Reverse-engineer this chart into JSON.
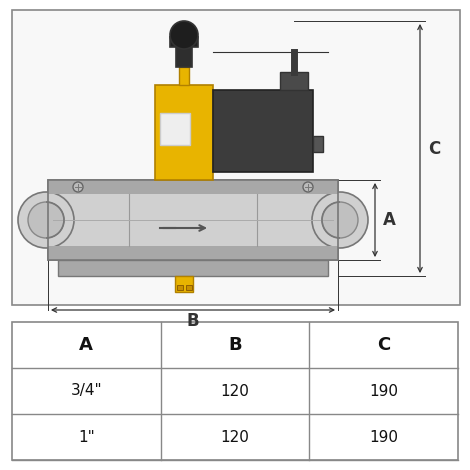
{
  "bg_color": "#ffffff",
  "body_color": "#d0d0d0",
  "body_dark": "#a8a8a8",
  "body_light": "#e0e0e0",
  "solenoid_color": "#3c3c3c",
  "solenoid_dark": "#2a2a2a",
  "yellow_color": "#e8b400",
  "yellow_dark": "#c89800",
  "table_headers": [
    "A",
    "B",
    "C"
  ],
  "table_rows": [
    [
      "3/4\"",
      "120",
      "190"
    ],
    [
      "1\"",
      "120",
      "190"
    ]
  ],
  "dim_color": "#333333",
  "border_color": "#888888"
}
